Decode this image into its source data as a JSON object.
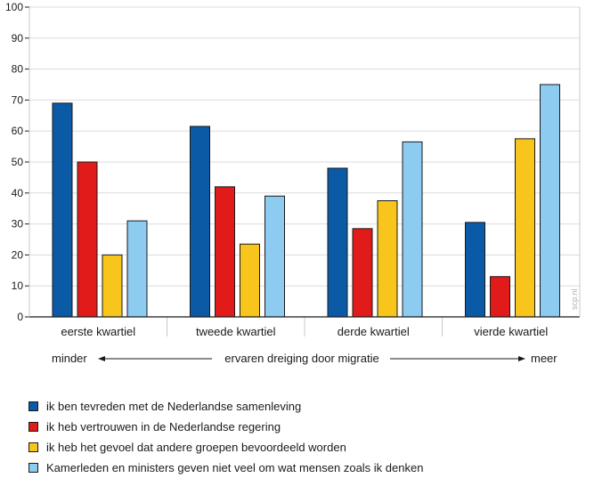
{
  "chart_data": {
    "type": "bar",
    "categories": [
      "eerste kwartiel",
      "tweede kwartiel",
      "derde kwartiel",
      "vierde kwartiel"
    ],
    "series": [
      {
        "name": "ik ben tevreden met de Nederlandse samenleving",
        "color": "#0a5aa5",
        "values": [
          69,
          61.5,
          48,
          30.5
        ]
      },
      {
        "name": "ik heb vertrouwen in de Nederlandse regering",
        "color": "#e11a1a",
        "values": [
          50,
          42,
          28.5,
          13
        ]
      },
      {
        "name": "ik heb het gevoel dat andere groepen bevoordeeld worden",
        "color": "#f7c51b",
        "values": [
          20,
          23.5,
          37.5,
          57.5
        ]
      },
      {
        "name": "Kamerleden en ministers geven niet veel om wat mensen zoals ik denken",
        "color": "#8ecbf0",
        "values": [
          31,
          39,
          56.5,
          75
        ]
      }
    ],
    "ylim": [
      0,
      100
    ],
    "yticks": [
      0,
      10,
      20,
      30,
      40,
      50,
      60,
      70,
      80,
      90,
      100
    ],
    "grid": true,
    "legend_position": "bottom-left",
    "axis_caption": {
      "left": "minder",
      "center": "ervaren dreiging door migratie",
      "right": "meer"
    },
    "watermark": "scp.nl"
  }
}
